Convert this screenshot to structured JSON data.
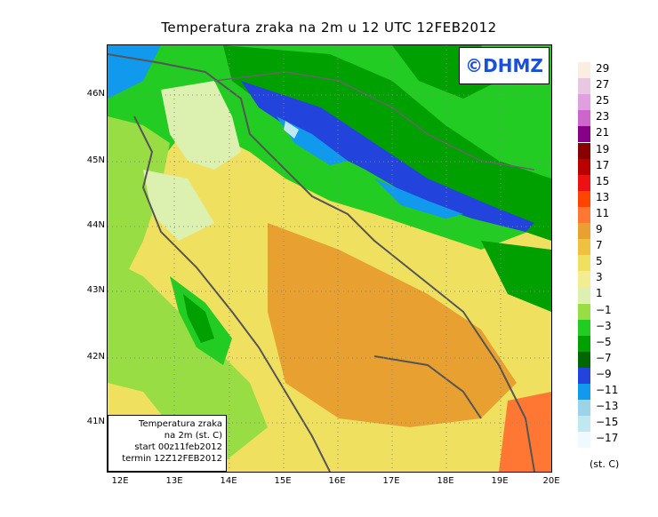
{
  "title": "Temperatura zraka na 2m u 12 UTC 12FEB2012",
  "brand": "©DHMZ",
  "info": {
    "line1": "Temperatura zraka",
    "line2": "na 2m (st. C)",
    "line3": "start 00z11feb2012",
    "line4": "termin 12Z12FEB2012"
  },
  "axes": {
    "x_labels": [
      "12E",
      "13E",
      "14E",
      "15E",
      "16E",
      "17E",
      "18E",
      "19E",
      "20E"
    ],
    "y_labels": [
      "46N",
      "45N",
      "44N",
      "43N",
      "42N",
      "41N"
    ]
  },
  "legend": {
    "labels": [
      "29",
      "27",
      "25",
      "23",
      "21",
      "19",
      "17",
      "15",
      "13",
      "11",
      "9",
      "7",
      "5",
      "3",
      "1",
      "−1",
      "−3",
      "−5",
      "−7",
      "−9",
      "−11",
      "−13",
      "−15",
      "−17"
    ],
    "colors": [
      "#fbeee0",
      "#e8c8e0",
      "#e0a0e0",
      "#cc66cc",
      "#880088",
      "#880000",
      "#bb0000",
      "#ee1111",
      "#ff4400",
      "#ff7733",
      "#e8a030",
      "#f0c040",
      "#f0e060",
      "#f4ec90",
      "#dcf0b0",
      "#99dd44",
      "#22cc22",
      "#00a000",
      "#006600",
      "#2244dd",
      "#1199ee",
      "#99d4e8",
      "#c0e8f0",
      "#eefaff"
    ],
    "unit": "(st. C)"
  }
}
